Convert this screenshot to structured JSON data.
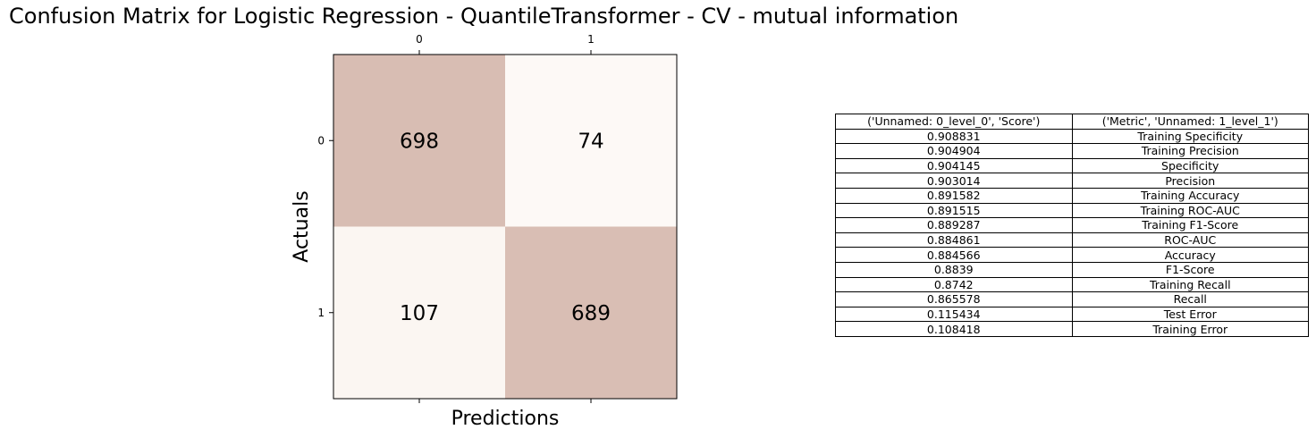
{
  "chart_data": [
    {
      "type": "heatmap",
      "title": "Confusion Matrix for Logistic Regression - QuantileTransformer - CV - mutual information",
      "xlabel": "Predictions",
      "ylabel": "Actuals",
      "x_ticks": [
        "0",
        "1"
      ],
      "y_ticks": [
        "0",
        "1"
      ],
      "x_tick_position": "top",
      "values": [
        [
          698,
          74
        ],
        [
          107,
          689
        ]
      ],
      "colors": {
        "high": "#d8bdb3",
        "low": "#fdf9f6"
      },
      "grid": false
    },
    {
      "type": "table",
      "columns": [
        "('Unnamed: 0_level_0', 'Score')",
        "('Metric', 'Unnamed: 1_level_1')"
      ],
      "rows": [
        [
          "0.908831",
          "Training Specificity"
        ],
        [
          "0.904904",
          "Training Precision"
        ],
        [
          "0.904145",
          "Specificity"
        ],
        [
          "0.903014",
          "Precision"
        ],
        [
          "0.891582",
          "Training Accuracy"
        ],
        [
          "0.891515",
          "Training ROC-AUC"
        ],
        [
          "0.889287",
          "Training F1-Score"
        ],
        [
          "0.884861",
          "ROC-AUC"
        ],
        [
          "0.884566",
          "Accuracy"
        ],
        [
          "0.8839",
          "F1-Score"
        ],
        [
          "0.8742",
          "Training Recall"
        ],
        [
          "0.865578",
          "Recall"
        ],
        [
          "0.115434",
          "Test Error"
        ],
        [
          "0.108418",
          "Training Error"
        ]
      ]
    }
  ]
}
